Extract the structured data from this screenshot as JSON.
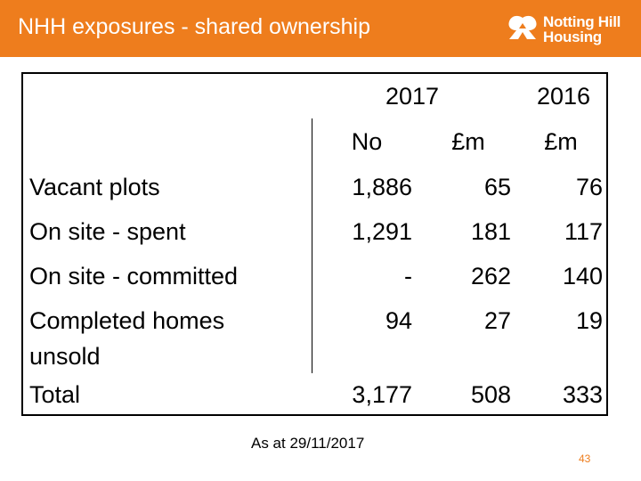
{
  "header": {
    "title": "NHH exposures - shared ownership",
    "logo_line1": "Notting Hill",
    "logo_line2": "Housing",
    "color": "#EE7D1D"
  },
  "table": {
    "year_2017": "2017",
    "year_2016": "2016",
    "col_no": "No",
    "col_m1": "£m",
    "col_m2": "£m",
    "rows": [
      {
        "label": "Vacant plots",
        "no": "1,886",
        "m2017": "65",
        "m2016": "76"
      },
      {
        "label": "On site - spent",
        "no": "1,291",
        "m2017": "181",
        "m2016": "117"
      },
      {
        "label": "On site - committed",
        "no": "-",
        "m2017": "262",
        "m2016": "140"
      },
      {
        "label1": "Completed homes",
        "label2": "unsold",
        "no": "94",
        "m2017": "27",
        "m2016": "19"
      }
    ],
    "total": {
      "label": "Total",
      "no": "3,177",
      "m2017": "508",
      "m2016": "333"
    }
  },
  "footer": {
    "note": "As at 29/11/2017",
    "page": "43"
  }
}
